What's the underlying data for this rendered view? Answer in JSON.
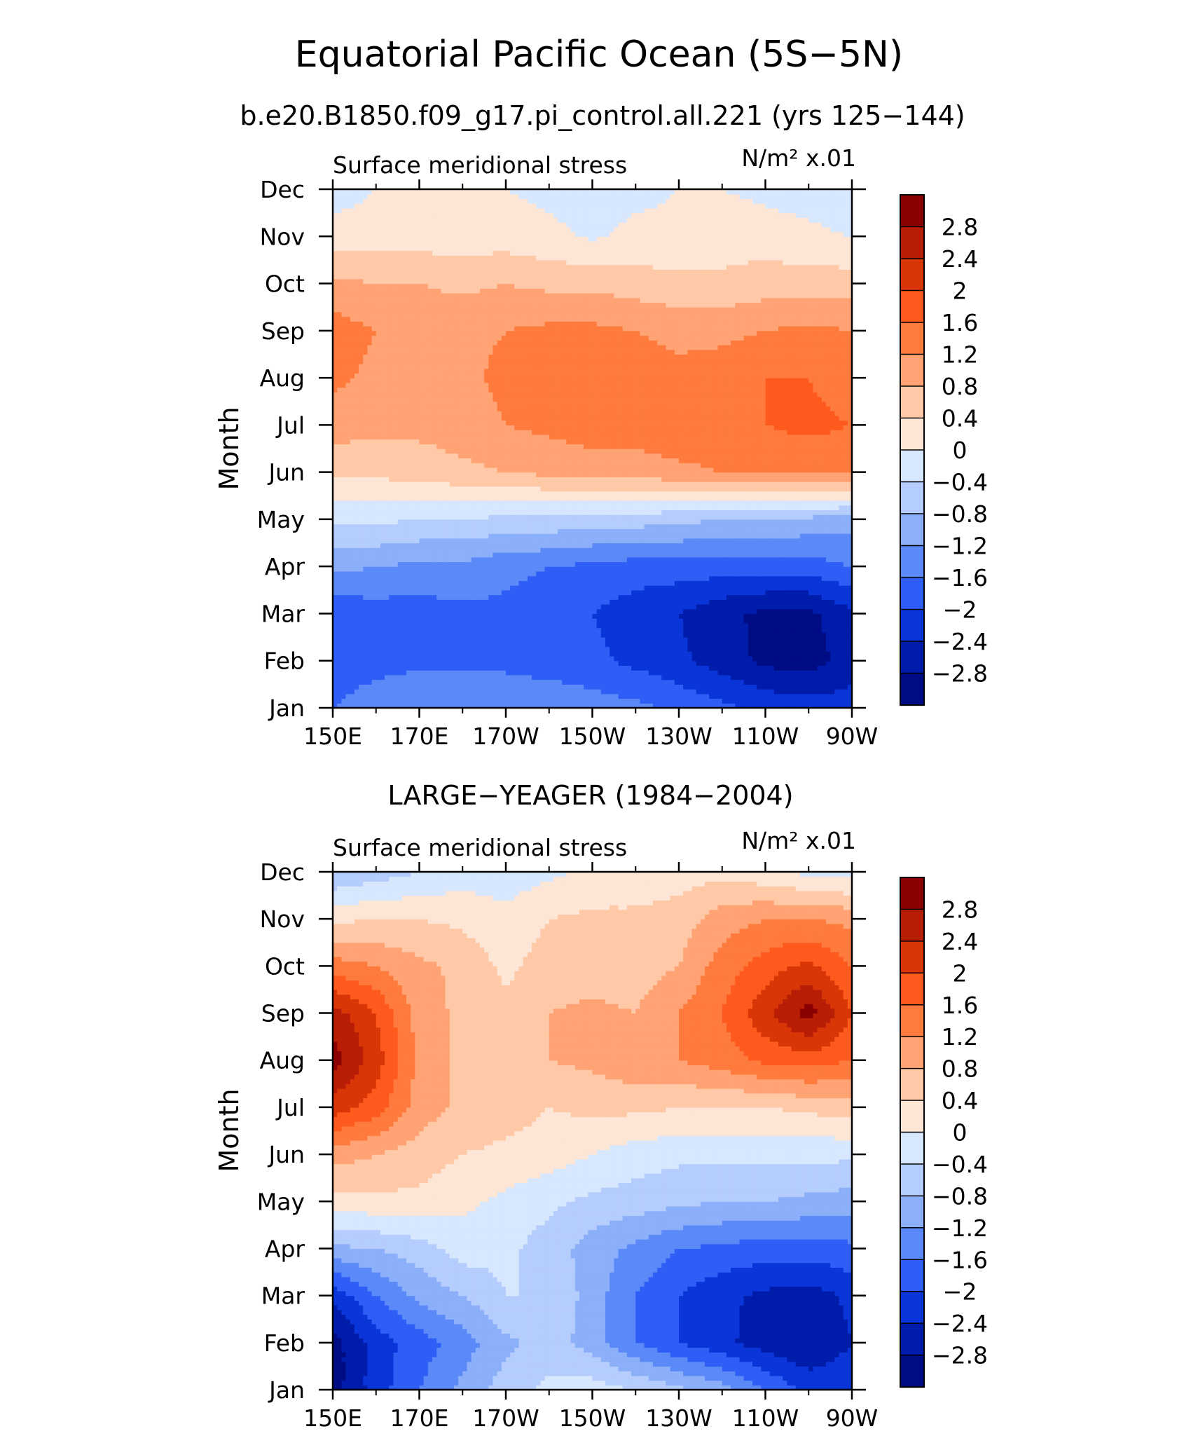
{
  "page": {
    "title": "Equatorial Pacific Ocean (5S−5N)",
    "subtitle": "b.e20.B1850.f09_g17.pi_control.all.221 (yrs 125−144)",
    "second_title": "LARGE−YEAGER (1984−2004)"
  },
  "colorbar": {
    "labels": [
      "2.8",
      "2.4",
      "2",
      "1.6",
      "1.2",
      "0.8",
      "0.4",
      "0",
      "−0.4",
      "−0.8",
      "−1.2",
      "−1.6",
      "−2",
      "−2.4",
      "−2.8"
    ],
    "levels": [
      2.8,
      2.4,
      2.0,
      1.6,
      1.2,
      0.8,
      0.4,
      0,
      -0.4,
      -0.8,
      -1.2,
      -1.6,
      -2.0,
      -2.4,
      -2.8
    ],
    "colors": [
      "#8b0000",
      "#b81e05",
      "#d93607",
      "#ff5a1e",
      "#ff7a3d",
      "#ffa274",
      "#ffc9a7",
      "#fde6d5",
      "#d7e7fd",
      "#b5cdfc",
      "#8caffa",
      "#5b8af8",
      "#2e5ef5",
      "#0a35d8",
      "#001cab",
      "#000c84"
    ]
  },
  "chart_data": [
    {
      "type": "heatmap",
      "name": "model",
      "title": "Surface meridional stress",
      "units": "N/m² x.01",
      "ylabel": "Month",
      "x_ticks": [
        "150E",
        "170E",
        "170W",
        "150W",
        "130W",
        "110W",
        "90W"
      ],
      "x_lon": [
        150,
        170,
        190,
        210,
        230,
        250,
        270
      ],
      "y_ticks": [
        "Jan",
        "Feb",
        "Mar",
        "Apr",
        "May",
        "Jun",
        "Jul",
        "Aug",
        "Sep",
        "Oct",
        "Nov",
        "Dec"
      ],
      "x": [
        150,
        160,
        170,
        180,
        190,
        200,
        210,
        220,
        230,
        240,
        250,
        260,
        270
      ],
      "z": [
        [
          -1.6,
          -1.3,
          -1.2,
          -1.3,
          -1.3,
          -1.3,
          -1.4,
          -1.5,
          -1.7,
          -1.9,
          -2.1,
          -2.2,
          -2.2
        ],
        [
          -1.9,
          -1.8,
          -1.7,
          -1.7,
          -1.7,
          -1.8,
          -1.9,
          -2.1,
          -2.3,
          -2.6,
          -2.9,
          -3.0,
          -2.6
        ],
        [
          -1.9,
          -1.8,
          -1.8,
          -1.7,
          -1.7,
          -1.8,
          -2.0,
          -2.2,
          -2.4,
          -2.7,
          -2.9,
          -2.9,
          -2.5
        ],
        [
          -1.1,
          -1.2,
          -1.3,
          -1.3,
          -1.5,
          -1.6,
          -1.7,
          -1.8,
          -1.8,
          -1.8,
          -1.8,
          -1.8,
          -1.6
        ],
        [
          -0.3,
          -0.3,
          -0.4,
          -0.4,
          -0.5,
          -0.5,
          -0.6,
          -0.6,
          -0.7,
          -0.8,
          -0.8,
          -0.9,
          -1.0
        ],
        [
          0.5,
          0.5,
          0.6,
          0.7,
          0.8,
          0.9,
          1.0,
          1.0,
          1.1,
          1.2,
          1.3,
          1.3,
          1.3
        ],
        [
          1.0,
          0.9,
          0.9,
          1.0,
          1.2,
          1.3,
          1.4,
          1.4,
          1.5,
          1.5,
          1.6,
          1.7,
          1.6
        ],
        [
          1.3,
          1.1,
          1.1,
          1.1,
          1.3,
          1.4,
          1.4,
          1.4,
          1.3,
          1.4,
          1.6,
          1.6,
          1.4
        ],
        [
          1.4,
          1.2,
          1.1,
          1.1,
          1.2,
          1.3,
          1.3,
          1.2,
          1.1,
          1.1,
          1.2,
          1.3,
          1.2
        ],
        [
          0.9,
          0.8,
          0.8,
          0.7,
          0.8,
          0.7,
          0.7,
          0.6,
          0.5,
          0.5,
          0.6,
          0.6,
          0.6
        ],
        [
          0.2,
          0.2,
          0.2,
          0.2,
          0.2,
          0.1,
          -0.05,
          0.1,
          0.1,
          0.2,
          0.2,
          0.1,
          0.0
        ],
        [
          -0.2,
          0.0,
          0.1,
          0.0,
          0.0,
          -0.1,
          -0.2,
          -0.1,
          0.0,
          0.0,
          -0.1,
          -0.2,
          -0.3
        ]
      ]
    },
    {
      "type": "heatmap",
      "name": "obs",
      "title": "Surface meridional stress",
      "units": "N/m² x.01",
      "ylabel": "Month",
      "x_ticks": [
        "150E",
        "170E",
        "170W",
        "150W",
        "130W",
        "110W",
        "90W"
      ],
      "x_lon": [
        150,
        170,
        190,
        210,
        230,
        250,
        270
      ],
      "y_ticks": [
        "Jan",
        "Feb",
        "Mar",
        "Apr",
        "May",
        "Jun",
        "Jul",
        "Aug",
        "Sep",
        "Oct",
        "Nov",
        "Dec"
      ],
      "x": [
        150,
        160,
        170,
        180,
        190,
        200,
        210,
        220,
        230,
        240,
        250,
        260,
        270
      ],
      "z": [
        [
          -3.0,
          -2.2,
          -1.6,
          -1.1,
          -0.6,
          -0.3,
          -0.2,
          -0.4,
          -0.7,
          -1.0,
          -1.6,
          -2.1,
          -2.1
        ],
        [
          -3.0,
          -2.2,
          -1.8,
          -1.4,
          -0.9,
          -0.6,
          -1.0,
          -1.6,
          -2.0,
          -2.3,
          -2.6,
          -2.8,
          -2.4
        ],
        [
          -2.3,
          -1.6,
          -1.1,
          -0.8,
          -0.4,
          -0.4,
          -1.0,
          -1.6,
          -2.0,
          -2.3,
          -2.5,
          -2.6,
          -2.3
        ],
        [
          -0.9,
          -0.8,
          -0.6,
          -0.2,
          -0.3,
          -0.6,
          -1.0,
          -1.3,
          -1.6,
          -1.7,
          -1.8,
          -1.8,
          -1.7
        ],
        [
          0.2,
          0.3,
          0.3,
          0.1,
          -0.1,
          -0.3,
          -0.5,
          -0.6,
          -0.7,
          -0.8,
          -0.8,
          -0.9,
          -1.0
        ],
        [
          1.0,
          0.8,
          0.6,
          0.4,
          0.3,
          0.2,
          0.0,
          -0.2,
          -0.3,
          -0.3,
          -0.3,
          -0.3,
          -0.3
        ],
        [
          2.2,
          1.8,
          1.0,
          0.7,
          0.6,
          0.4,
          0.5,
          0.5,
          0.4,
          0.4,
          0.4,
          0.5,
          0.6
        ],
        [
          3.0,
          2.2,
          1.1,
          0.7,
          0.6,
          0.8,
          0.9,
          1.1,
          1.2,
          1.4,
          1.7,
          1.8,
          1.6
        ],
        [
          2.6,
          2.0,
          1.0,
          0.7,
          0.5,
          0.8,
          0.9,
          0.8,
          1.2,
          1.6,
          2.3,
          3.0,
          2.0
        ],
        [
          1.4,
          1.2,
          0.9,
          0.7,
          0.3,
          0.6,
          0.6,
          0.6,
          0.8,
          1.4,
          1.8,
          2.1,
          1.6
        ],
        [
          0.3,
          0.4,
          0.4,
          0.3,
          0.1,
          0.4,
          0.5,
          0.5,
          0.6,
          1.0,
          1.2,
          1.2,
          1.1
        ],
        [
          -0.8,
          -0.6,
          -0.4,
          -0.2,
          -0.2,
          -0.1,
          0.1,
          0.1,
          0.2,
          0.3,
          0.1,
          -0.1,
          -0.2
        ]
      ]
    }
  ]
}
